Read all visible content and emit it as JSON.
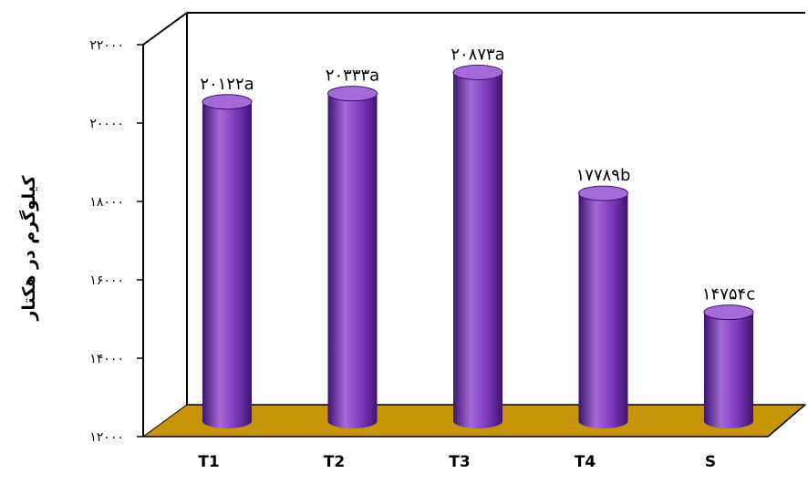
{
  "chart_data": {
    "type": "bar",
    "ylabel": "کیلوگرم در هکتار",
    "xlabel": "",
    "categories": [
      "T1",
      "T2",
      "T3",
      "T4",
      "S"
    ],
    "values": [
      20122,
      20333,
      20873,
      17789,
      14754
    ],
    "data_labels": [
      "۲۰۱۲۲a",
      "۲۰۳۳۳a",
      "۲۰۸۷۳a",
      "۱۷۷۸۹b",
      "۱۴۷۵۴c"
    ],
    "yticks": [
      12000,
      14000,
      16000,
      18000,
      20000,
      22000
    ],
    "ytick_labels": [
      "۱۲۰۰۰",
      "۱۴۰۰۰",
      "۱۶۰۰۰",
      "۱۸۰۰۰",
      "۲۰۰۰۰",
      "۲۲۰۰۰"
    ],
    "ylim": [
      12000,
      22000
    ],
    "grid": false,
    "legend": "none",
    "style": "3d-cylinder",
    "colors": {
      "bar": "#7a35b8",
      "bar_dark": "#3e1470",
      "bar_light": "#a56ad8",
      "floor": "#c8940a",
      "axis": "#000000"
    }
  }
}
